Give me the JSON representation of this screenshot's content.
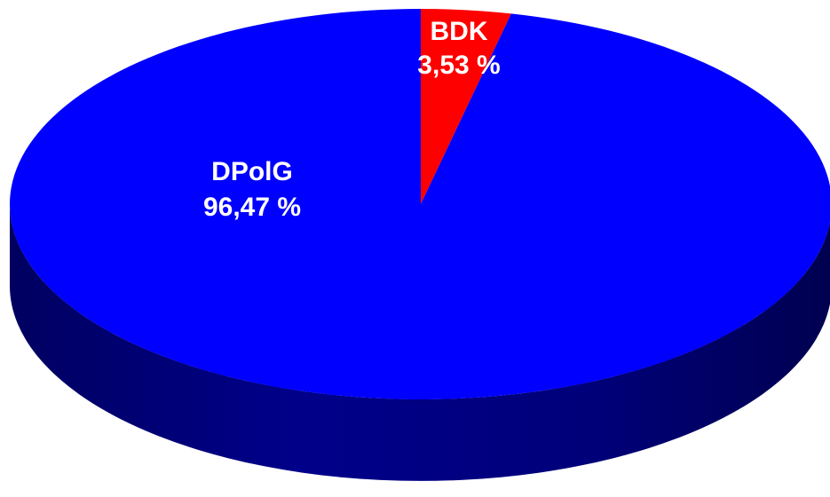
{
  "chart_data": {
    "type": "pie",
    "style": "3d",
    "slices": [
      {
        "label": "BDK",
        "value": 3.53,
        "value_label": "3,53 %",
        "color": "#ff0000",
        "side_color": "#8a0000"
      },
      {
        "label": "DPolG",
        "value": 96.47,
        "value_label": "96,47 %",
        "color": "#0000ff",
        "side_color": "#000080"
      }
    ]
  }
}
